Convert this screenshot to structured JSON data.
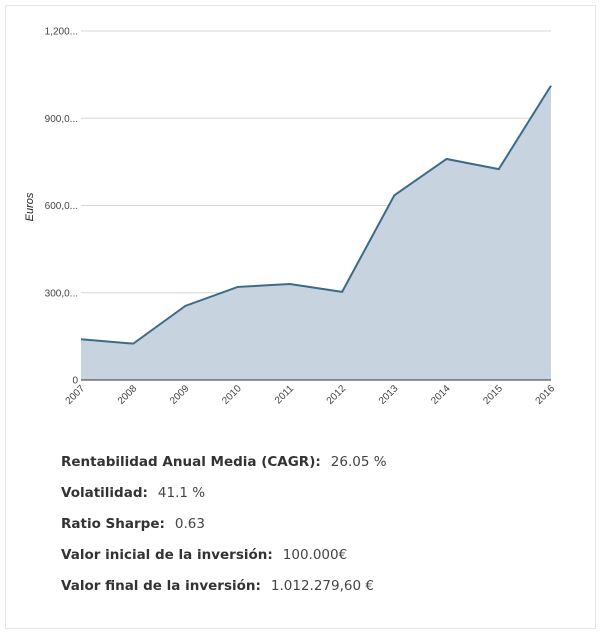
{
  "chart_data": {
    "type": "area",
    "title": "",
    "xlabel": "",
    "ylabel": "Euros",
    "x": [
      "2007",
      "2008",
      "2009",
      "2010",
      "2011",
      "2012",
      "2013",
      "2014",
      "2015",
      "2016"
    ],
    "values": [
      140000,
      125000,
      255000,
      320000,
      330000,
      303000,
      635000,
      760000,
      725000,
      1012279.6
    ],
    "ylim": [
      0,
      1200000
    ],
    "yticks": [
      {
        "value": 0,
        "label": "0"
      },
      {
        "value": 300000,
        "label": "300,0..."
      },
      {
        "value": 600000,
        "label": "600,0..."
      },
      {
        "value": 900000,
        "label": "900,0..."
      },
      {
        "value": 1200000,
        "label": "1,200..."
      }
    ],
    "grid": true,
    "legend": "none",
    "colors": {
      "line": "#3d6a8a",
      "fill": "#c7d4e0",
      "grid": "#d6d6d6",
      "axis": "#333333"
    }
  },
  "stats": [
    {
      "label": "Rentabilidad Anual Media (CAGR):",
      "value": "26.05 %"
    },
    {
      "label": "Volatilidad:",
      "value": "41.1 %"
    },
    {
      "label": "Ratio Sharpe:",
      "value": "0.63"
    },
    {
      "label": "Valor inicial de la inversión:",
      "value": "100.000€"
    },
    {
      "label": "Valor final de la inversión:",
      "value": "1.012.279,60 €"
    }
  ]
}
